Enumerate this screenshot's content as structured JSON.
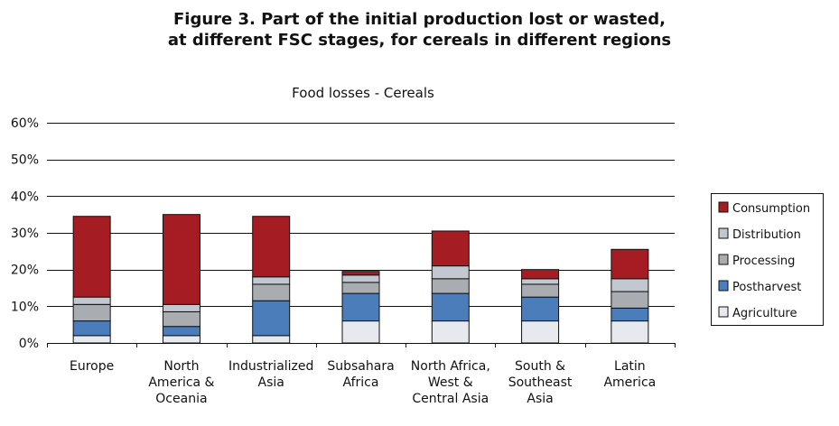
{
  "figure": {
    "title_line1": "Figure 3.  Part of the initial production lost or wasted,",
    "title_line2": "at different FSC stages, for cereals in different regions"
  },
  "chart_data": {
    "type": "bar",
    "stacked": true,
    "title": "Food losses - Cereals",
    "xlabel": "",
    "ylabel": "",
    "ylim": [
      0,
      60
    ],
    "y_ticks": [
      0,
      10,
      20,
      30,
      40,
      50,
      60
    ],
    "y_tick_labels": [
      "0%",
      "10%",
      "20%",
      "30%",
      "40%",
      "50%",
      "60%"
    ],
    "grid": true,
    "legend_position": "right",
    "categories": [
      [
        "Europe"
      ],
      [
        "North",
        "America &",
        "Oceania"
      ],
      [
        "Industrialized",
        "Asia"
      ],
      [
        "Subsahara",
        "Africa"
      ],
      [
        "North Africa,",
        "West &",
        "Central Asia"
      ],
      [
        "South &",
        "Southeast",
        "Asia"
      ],
      [
        "Latin",
        "America"
      ]
    ],
    "series": [
      {
        "name": "Agriculture",
        "color": "#e6e9ee",
        "values": [
          2,
          2,
          2,
          6,
          6,
          6,
          6
        ]
      },
      {
        "name": "Postharvest",
        "color": "#4a7db9",
        "values": [
          4,
          2.5,
          9.5,
          7.5,
          7.5,
          6.5,
          3.5
        ]
      },
      {
        "name": "Processing",
        "color": "#a9adb2",
        "values": [
          4.5,
          4,
          4.5,
          3,
          4,
          3.5,
          4.5
        ]
      },
      {
        "name": "Distribution",
        "color": "#c2c8cf",
        "values": [
          2,
          2,
          2,
          2,
          3.5,
          1.5,
          3.5
        ]
      },
      {
        "name": "Consumption",
        "color": "#a51c23",
        "values": [
          22,
          24.5,
          16.5,
          1,
          9.5,
          2.5,
          8
        ]
      }
    ]
  }
}
